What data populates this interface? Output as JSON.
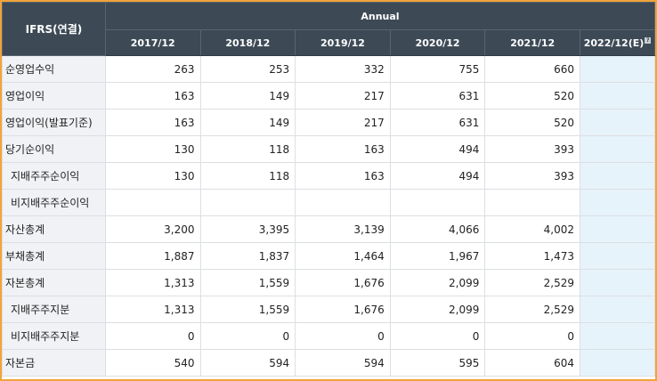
{
  "header": {
    "corner": "IFRS(연결)",
    "group": "Annual",
    "years": [
      "2017/12",
      "2018/12",
      "2019/12",
      "2020/12",
      "2021/12",
      "2022/12(E)"
    ],
    "estimate_icon": "?"
  },
  "rows": [
    {
      "label": "순영업수익",
      "indent": false,
      "values": [
        "263",
        "253",
        "332",
        "755",
        "660",
        ""
      ]
    },
    {
      "label": "영업이익",
      "indent": false,
      "values": [
        "163",
        "149",
        "217",
        "631",
        "520",
        ""
      ]
    },
    {
      "label": "영업이익(발표기준)",
      "indent": false,
      "values": [
        "163",
        "149",
        "217",
        "631",
        "520",
        ""
      ]
    },
    {
      "label": "당기순이익",
      "indent": false,
      "values": [
        "130",
        "118",
        "163",
        "494",
        "393",
        ""
      ]
    },
    {
      "label": "지배주주순이익",
      "indent": true,
      "values": [
        "130",
        "118",
        "163",
        "494",
        "393",
        ""
      ]
    },
    {
      "label": "비지배주주순이익",
      "indent": true,
      "values": [
        "",
        "",
        "",
        "",
        "",
        ""
      ]
    },
    {
      "label": "자산총계",
      "indent": false,
      "values": [
        "3,200",
        "3,395",
        "3,139",
        "4,066",
        "4,002",
        ""
      ]
    },
    {
      "label": "부채총계",
      "indent": false,
      "values": [
        "1,887",
        "1,837",
        "1,464",
        "1,967",
        "1,473",
        ""
      ]
    },
    {
      "label": "자본총계",
      "indent": false,
      "values": [
        "1,313",
        "1,559",
        "1,676",
        "2,099",
        "2,529",
        ""
      ]
    },
    {
      "label": "지배주주지분",
      "indent": true,
      "values": [
        "1,313",
        "1,559",
        "1,676",
        "2,099",
        "2,529",
        ""
      ]
    },
    {
      "label": "비지배주주지분",
      "indent": true,
      "values": [
        "0",
        "0",
        "0",
        "0",
        "0",
        ""
      ]
    },
    {
      "label": "자본금",
      "indent": false,
      "values": [
        "540",
        "594",
        "594",
        "595",
        "604",
        ""
      ]
    }
  ],
  "colors": {
    "frame": "#f2a33a",
    "header_bg": "#3d4a56",
    "label_bg": "#f0f2f5",
    "estimate_bg": "#e6f3fa"
  }
}
